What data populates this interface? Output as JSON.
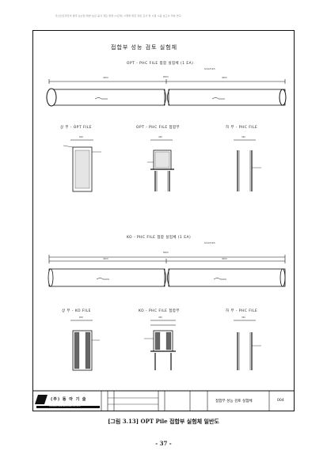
{
  "header": {
    "running_text": "두산인프라코어 발주 논산천 제방 보강 공사 개요 방향 (1단계) 시행을 위한 지반 조사 및 시험 시공 보고서 작성 연구"
  },
  "drawing": {
    "title": "접합부 성능 검토 실험체",
    "section1_title": "OPT - PHC FILE 접합 실험체 (1 EA)",
    "section2_title": "KO - PHC FILE 접합 실험체 (1 EA)",
    "detail_opt_upper": "상 부 - OPT FILE",
    "detail_opt_joint": "OPT - PHC FILE 접합부",
    "detail_lower_phc_1": "하 부 - PHC FILE",
    "detail_ko_upper": "상 부 - KO FILE",
    "detail_ko_joint": "KO - PHC FILE 접합부",
    "detail_lower_phc_2": "하 부 - PHC FILE",
    "scale_note": "SCALE:N/S",
    "dim_total": "8000",
    "dim_left": "4000",
    "dim_right": "4000",
    "dim_small_a": "600",
    "dim_small_b": "450"
  },
  "title_block": {
    "company": "(주) 동 아 기 술",
    "company_sub": "DONGA ENGINEERING CO.,LTD",
    "drawing_name": "접합부 성능 검토 실험체",
    "sheet_no": "004"
  },
  "caption": "[그림 3.13] OPT Pile 접합부 실험체 일반도",
  "page_number": "- 37 -"
}
